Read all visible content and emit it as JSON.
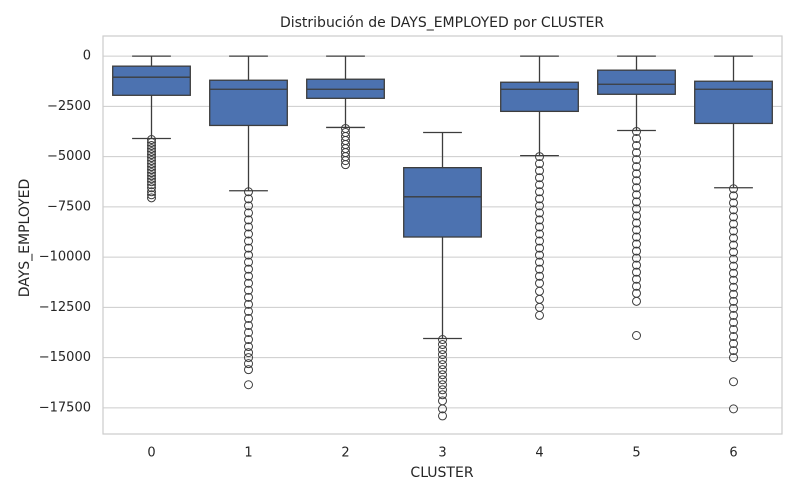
{
  "chart_data": {
    "type": "boxplot",
    "title": "Distribución de DAYS_EMPLOYED por CLUSTER",
    "x_label": "CLUSTER",
    "y_label": "DAYS_EMPLOYED",
    "categories": [
      "0",
      "1",
      "2",
      "3",
      "4",
      "5",
      "6"
    ],
    "color": "#4c72b0",
    "line_color": "#3d3d3d",
    "grid": true,
    "ylim": [
      -18800,
      1000
    ],
    "yticks": [
      0,
      {
        "value": -2500,
        "label": "−2500"
      },
      {
        "value": -5000,
        "label": "−5000"
      },
      {
        "value": -7500,
        "label": "−7500"
      },
      {
        "value": -10000,
        "label": "−10000"
      },
      {
        "value": -12500,
        "label": "−12500"
      },
      {
        "value": -15000,
        "label": "−15000"
      },
      {
        "value": -17500,
        "label": "−17500"
      }
    ],
    "boxes": [
      {
        "whishi": 0,
        "q3": -500,
        "med": -1050,
        "q1": -1950,
        "whislo": -4100,
        "fliers": [
          -4150,
          -4300,
          -4450,
          -4600,
          -4750,
          -4900,
          -5050,
          -5200,
          -5350,
          -5500,
          -5650,
          -5800,
          -5950,
          -6100,
          -6250,
          -6400,
          -6550,
          -6750,
          -6900,
          -7050
        ]
      },
      {
        "whishi": 0,
        "q3": -1200,
        "med": -1650,
        "q1": -3450,
        "whislo": -6700,
        "fliers": [
          -6750,
          -7100,
          -7450,
          -7800,
          -8150,
          -8500,
          -8850,
          -9200,
          -9550,
          -9900,
          -10250,
          -10600,
          -10950,
          -11300,
          -11650,
          -12000,
          -12350,
          -12700,
          -13050,
          -13400,
          -13750,
          -14100,
          -14450,
          -14750,
          -15000,
          -15300,
          -15600,
          -16350
        ]
      },
      {
        "whishi": 0,
        "q3": -1150,
        "med": -1650,
        "q1": -2100,
        "whislo": -3550,
        "fliers": [
          -3600,
          -3800,
          -4000,
          -4200,
          -4400,
          -4600,
          -4800,
          -5000,
          -5200,
          -5400
        ]
      },
      {
        "whishi": -3800,
        "q3": -5550,
        "med": -7000,
        "q1": -9000,
        "whislo": -14050,
        "fliers": [
          -14100,
          -14350,
          -14600,
          -14850,
          -15100,
          -15350,
          -15600,
          -15850,
          -16100,
          -16350,
          -16600,
          -16850,
          -17150,
          -17550,
          -17900
        ]
      },
      {
        "whishi": 0,
        "q3": -1300,
        "med": -1650,
        "q1": -2750,
        "whislo": -4950,
        "fliers": [
          -5000,
          -5350,
          -5700,
          -6050,
          -6400,
          -6750,
          -7100,
          -7450,
          -7800,
          -8150,
          -8500,
          -8850,
          -9200,
          -9550,
          -9900,
          -10250,
          -10600,
          -10950,
          -11300,
          -11700,
          -12100,
          -12500,
          -12900
        ]
      },
      {
        "whishi": 0,
        "q3": -700,
        "med": -1400,
        "q1": -1900,
        "whislo": -3700,
        "fliers": [
          -3750,
          -4100,
          -4450,
          -4800,
          -5150,
          -5500,
          -5850,
          -6200,
          -6550,
          -6900,
          -7250,
          -7600,
          -7950,
          -8300,
          -8650,
          -9000,
          -9350,
          -9700,
          -10050,
          -10400,
          -10750,
          -11100,
          -11450,
          -11800,
          -12200,
          -13900
        ]
      },
      {
        "whishi": 0,
        "q3": -1250,
        "med": -1650,
        "q1": -3350,
        "whislo": -6550,
        "fliers": [
          -6600,
          -6950,
          -7300,
          -7650,
          -8000,
          -8350,
          -8700,
          -9050,
          -9400,
          -9750,
          -10100,
          -10450,
          -10800,
          -11150,
          -11500,
          -11850,
          -12200,
          -12550,
          -12900,
          -13250,
          -13600,
          -13950,
          -14300,
          -14650,
          -15000,
          -16200,
          -17550
        ]
      }
    ]
  }
}
